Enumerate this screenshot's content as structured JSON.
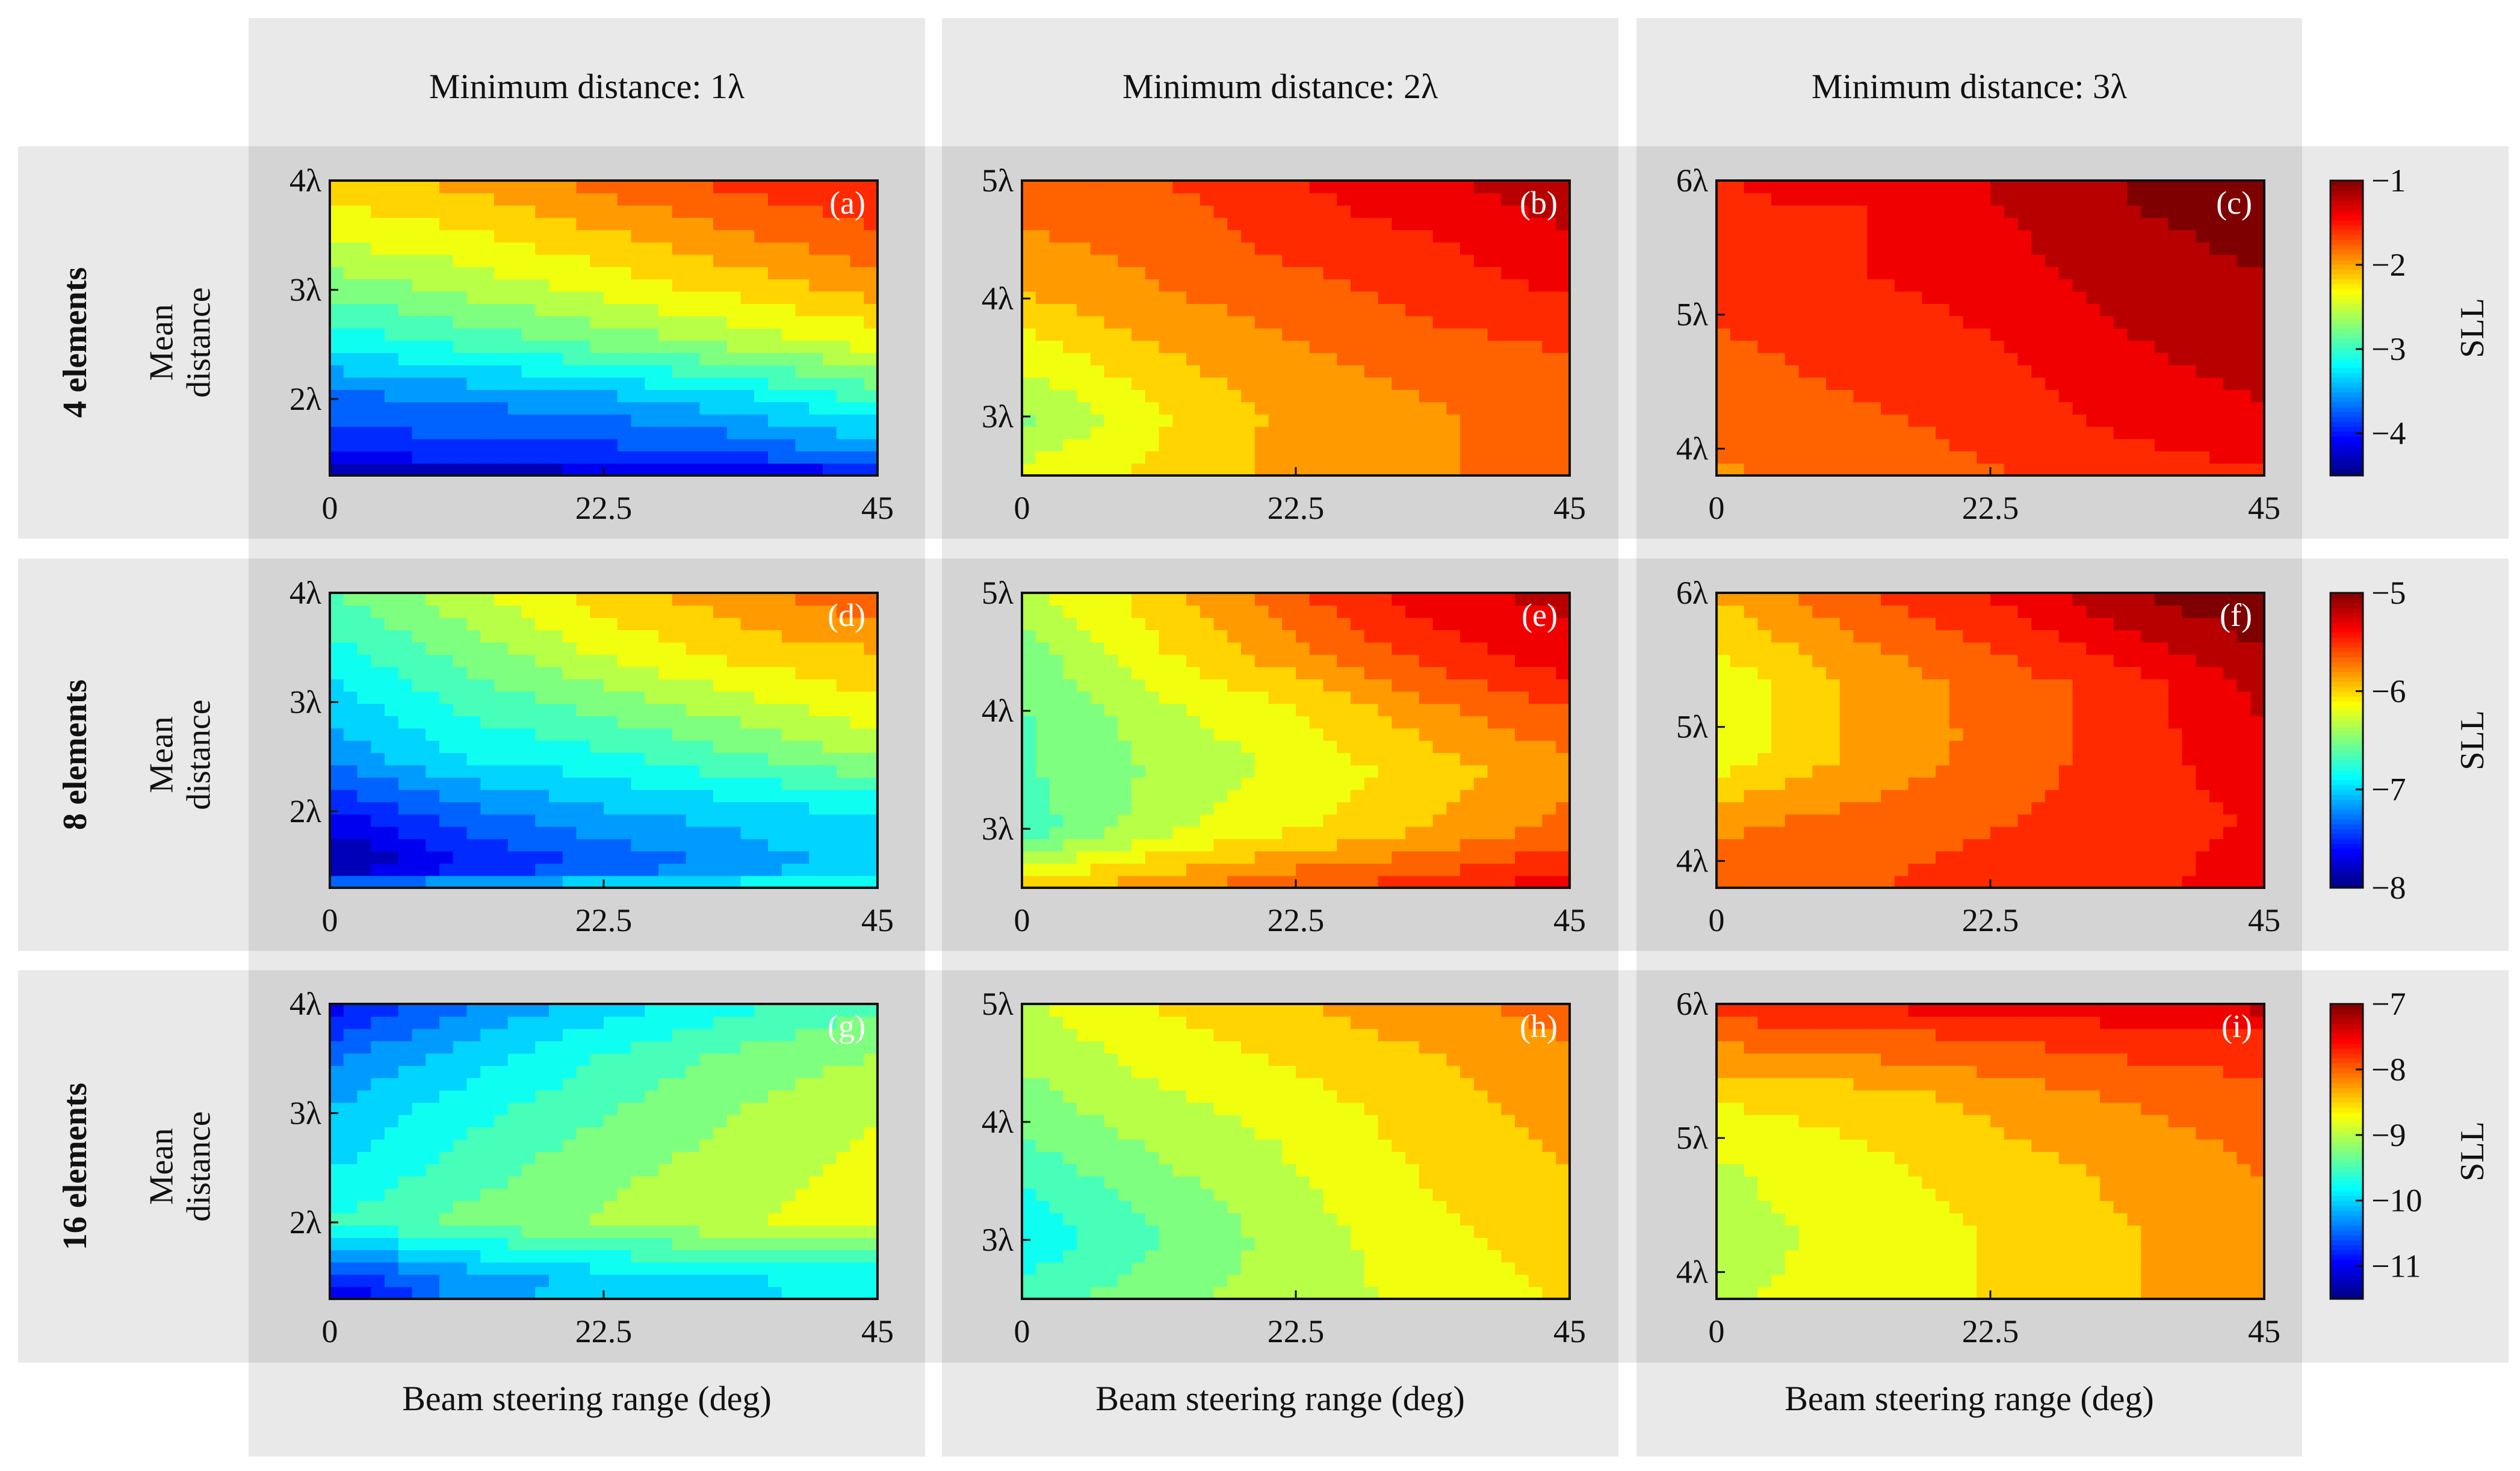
{
  "column_titles": [
    "Minimum distance: 1λ",
    "Minimum distance: 2λ",
    "Minimum distance: 3λ"
  ],
  "row_titles": [
    "4 elements",
    "8 elements",
    "16 elements"
  ],
  "row_ylabel": [
    "Mean",
    "distance"
  ],
  "xlabel": "Beam steering range (deg)",
  "colorbar_label": "SLL",
  "colormap": [
    "#00007f",
    "#0000ff",
    "#007fff",
    "#00ffff",
    "#7fff7f",
    "#ffff00",
    "#ff7f00",
    "#ff0000",
    "#7f0000"
  ],
  "chart_data": [
    {
      "panel": "(a)",
      "type": "heatmap",
      "row": 0,
      "col": 0,
      "x_ticks": [
        "0",
        "22.5",
        "45"
      ],
      "y_ticks": [
        "2λ",
        "3λ",
        "4λ"
      ],
      "xlim": [
        0,
        45
      ],
      "ylim": [
        1.3,
        4
      ],
      "clim": [
        -4.5,
        -1
      ],
      "x": [
        0,
        11.25,
        22.5,
        33.75,
        45
      ],
      "y": [
        1.3,
        1.5,
        2,
        2.5,
        3,
        3.5,
        4
      ],
      "z": [
        [
          -4.5,
          -4.4,
          -4.3,
          -4.2,
          -4.1
        ],
        [
          -4.0,
          -3.9,
          -3.9,
          -3.8,
          -3.6
        ],
        [
          -3.7,
          -3.6,
          -3.5,
          -3.3,
          -3.0
        ],
        [
          -3.2,
          -3.0,
          -2.8,
          -2.6,
          -2.4
        ],
        [
          -2.8,
          -2.6,
          -2.4,
          -2.2,
          -2.0
        ],
        [
          -2.4,
          -2.3,
          -2.1,
          -1.9,
          -1.7
        ],
        [
          -2.2,
          -2.0,
          -1.8,
          -1.6,
          -1.5
        ]
      ]
    },
    {
      "panel": "(b)",
      "type": "heatmap",
      "row": 0,
      "col": 1,
      "x_ticks": [
        "0",
        "22.5",
        "45"
      ],
      "y_ticks": [
        "3λ",
        "4λ",
        "5λ"
      ],
      "xlim": [
        0,
        45
      ],
      "ylim": [
        2.5,
        5
      ],
      "clim": [
        -4.5,
        -1
      ],
      "x": [
        0,
        11.25,
        22.5,
        33.75,
        45
      ],
      "y": [
        2.5,
        3,
        3.5,
        4,
        4.5,
        5
      ],
      "z": [
        [
          -2.4,
          -2.2,
          -2.0,
          -1.9,
          -1.8
        ],
        [
          -2.7,
          -2.3,
          -2.0,
          -1.9,
          -1.8
        ],
        [
          -2.4,
          -2.1,
          -1.9,
          -1.8,
          -1.7
        ],
        [
          -2.1,
          -1.9,
          -1.8,
          -1.6,
          -1.5
        ],
        [
          -1.9,
          -1.8,
          -1.6,
          -1.5,
          -1.3
        ],
        [
          -1.8,
          -1.7,
          -1.5,
          -1.3,
          -1.2
        ]
      ]
    },
    {
      "panel": "(c)",
      "type": "heatmap",
      "row": 0,
      "col": 2,
      "x_ticks": [
        "0",
        "22.5",
        "45"
      ],
      "y_ticks": [
        "4λ",
        "5λ",
        "6λ"
      ],
      "xlim": [
        0,
        45
      ],
      "ylim": [
        3.8,
        6
      ],
      "clim": [
        -4.5,
        -1
      ],
      "x": [
        0,
        11.25,
        22.5,
        33.75,
        45
      ],
      "y": [
        3.8,
        4.3,
        4.8,
        5.3,
        5.8,
        6
      ],
      "z": [
        [
          -1.9,
          -1.8,
          -1.7,
          -1.6,
          -1.5
        ],
        [
          -1.8,
          -1.7,
          -1.6,
          -1.4,
          -1.3
        ],
        [
          -1.7,
          -1.6,
          -1.5,
          -1.3,
          -1.2
        ],
        [
          -1.6,
          -1.5,
          -1.4,
          -1.2,
          -1.1
        ],
        [
          -1.5,
          -1.5,
          -1.3,
          -1.1,
          -1.0
        ],
        [
          -1.5,
          -1.4,
          -1.3,
          -1.1,
          -1.0
        ]
      ]
    },
    {
      "panel": "(d)",
      "type": "heatmap",
      "row": 1,
      "col": 0,
      "x_ticks": [
        "0",
        "22.5",
        "45"
      ],
      "y_ticks": [
        "2λ",
        "3λ",
        "4λ"
      ],
      "xlim": [
        0,
        45
      ],
      "ylim": [
        1.3,
        4
      ],
      "clim": [
        -8,
        -5
      ],
      "x": [
        0,
        11.25,
        22.5,
        33.75,
        45
      ],
      "y": [
        1.3,
        1.5,
        2,
        2.5,
        3,
        3.5,
        4
      ],
      "z": [
        [
          -7.2,
          -7.0,
          -6.9,
          -6.8,
          -6.7
        ],
        [
          -8.0,
          -7.6,
          -7.4,
          -7.2,
          -7.0
        ],
        [
          -7.6,
          -7.3,
          -7.1,
          -7.0,
          -6.9
        ],
        [
          -7.2,
          -6.9,
          -6.8,
          -6.6,
          -6.4
        ],
        [
          -7.0,
          -6.7,
          -6.5,
          -6.3,
          -6.1
        ],
        [
          -6.8,
          -6.5,
          -6.2,
          -6.0,
          -5.9
        ],
        [
          -6.6,
          -6.3,
          -6.0,
          -5.8,
          -5.6
        ]
      ]
    },
    {
      "panel": "(e)",
      "type": "heatmap",
      "row": 1,
      "col": 1,
      "x_ticks": [
        "0",
        "22.5",
        "45"
      ],
      "y_ticks": [
        "3λ",
        "4λ",
        "5λ"
      ],
      "xlim": [
        0,
        45
      ],
      "ylim": [
        2.5,
        5
      ],
      "clim": [
        -8,
        -5
      ],
      "x": [
        0,
        11.25,
        22.5,
        33.75,
        45
      ],
      "y": [
        2.5,
        3,
        3.5,
        4,
        4.5,
        5
      ],
      "z": [
        [
          -6.0,
          -5.8,
          -5.6,
          -5.5,
          -5.3
        ],
        [
          -6.7,
          -6.3,
          -6.1,
          -5.9,
          -5.7
        ],
        [
          -6.6,
          -6.4,
          -6.2,
          -6.0,
          -5.8
        ],
        [
          -6.6,
          -6.3,
          -6.1,
          -5.8,
          -5.6
        ],
        [
          -6.5,
          -6.1,
          -5.8,
          -5.5,
          -5.3
        ],
        [
          -6.3,
          -6.0,
          -5.6,
          -5.3,
          -5.2
        ]
      ]
    },
    {
      "panel": "(f)",
      "type": "heatmap",
      "row": 1,
      "col": 2,
      "x_ticks": [
        "0",
        "22.5",
        "45"
      ],
      "y_ticks": [
        "4λ",
        "5λ",
        "6λ"
      ],
      "xlim": [
        0,
        45
      ],
      "ylim": [
        3.8,
        6
      ],
      "clim": [
        -8,
        -5
      ],
      "x": [
        0,
        11.25,
        22.5,
        33.75,
        45
      ],
      "y": [
        3.8,
        4.3,
        4.8,
        5.3,
        5.8,
        6
      ],
      "z": [
        [
          -5.6,
          -5.6,
          -5.5,
          -5.5,
          -5.3
        ],
        [
          -5.8,
          -5.7,
          -5.6,
          -5.5,
          -5.4
        ],
        [
          -6.2,
          -5.9,
          -5.7,
          -5.5,
          -5.3
        ],
        [
          -6.2,
          -5.9,
          -5.7,
          -5.5,
          -5.2
        ],
        [
          -6.0,
          -5.7,
          -5.5,
          -5.2,
          -5.0
        ],
        [
          -5.9,
          -5.6,
          -5.4,
          -5.1,
          -4.9
        ]
      ]
    },
    {
      "panel": "(g)",
      "type": "heatmap",
      "row": 2,
      "col": 0,
      "x_ticks": [
        "0",
        "22.5",
        "45"
      ],
      "y_ticks": [
        "2λ",
        "3λ",
        "4λ"
      ],
      "xlim": [
        0,
        45
      ],
      "ylim": [
        1.3,
        4
      ],
      "clim": [
        -11.5,
        -7
      ],
      "x": [
        0,
        11.25,
        22.5,
        33.75,
        45
      ],
      "y": [
        1.3,
        1.5,
        2,
        2.5,
        3,
        3.5,
        4
      ],
      "z": [
        [
          -11.3,
          -10.2,
          -10.0,
          -9.9,
          -9.8
        ],
        [
          -10.8,
          -10.3,
          -10.0,
          -9.9,
          -9.8
        ],
        [
          -9.6,
          -9.3,
          -9.1,
          -8.9,
          -8.7
        ],
        [
          -9.9,
          -9.5,
          -9.2,
          -9.0,
          -8.8
        ],
        [
          -10.1,
          -9.7,
          -9.4,
          -9.1,
          -8.9
        ],
        [
          -10.4,
          -10.0,
          -9.6,
          -9.3,
          -9.1
        ],
        [
          -11.0,
          -10.4,
          -10.0,
          -9.7,
          -9.4
        ]
      ]
    },
    {
      "panel": "(h)",
      "type": "heatmap",
      "row": 2,
      "col": 1,
      "x_ticks": [
        "0",
        "22.5",
        "45"
      ],
      "y_ticks": [
        "3λ",
        "4λ",
        "5λ"
      ],
      "xlim": [
        0,
        45
      ],
      "ylim": [
        2.5,
        5
      ],
      "clim": [
        -11.5,
        -7
      ],
      "x": [
        0,
        11.25,
        22.5,
        33.75,
        45
      ],
      "y": [
        2.5,
        3,
        3.5,
        4,
        4.5,
        5
      ],
      "z": [
        [
          -9.5,
          -9.2,
          -9.0,
          -8.8,
          -8.6
        ],
        [
          -9.8,
          -9.4,
          -9.0,
          -8.7,
          -8.5
        ],
        [
          -9.6,
          -9.2,
          -8.9,
          -8.6,
          -8.4
        ],
        [
          -9.3,
          -9.0,
          -8.8,
          -8.5,
          -8.3
        ],
        [
          -9.1,
          -8.8,
          -8.6,
          -8.4,
          -8.2
        ],
        [
          -8.9,
          -8.6,
          -8.4,
          -8.2,
          -8.0
        ]
      ]
    },
    {
      "panel": "(i)",
      "type": "heatmap",
      "row": 2,
      "col": 2,
      "x_ticks": [
        "0",
        "22.5",
        "45"
      ],
      "y_ticks": [
        "4λ",
        "5λ",
        "6λ"
      ],
      "xlim": [
        0,
        45
      ],
      "ylim": [
        3.8,
        6
      ],
      "clim": [
        -11.5,
        -7
      ],
      "x": [
        0,
        11.25,
        22.5,
        33.75,
        45
      ],
      "y": [
        3.8,
        4.3,
        4.8,
        5.3,
        5.8,
        6
      ],
      "z": [
        [
          -8.9,
          -8.8,
          -8.6,
          -8.4,
          -8.2
        ],
        [
          -9.0,
          -8.8,
          -8.6,
          -8.4,
          -8.2
        ],
        [
          -8.9,
          -8.7,
          -8.5,
          -8.3,
          -8.1
        ],
        [
          -8.6,
          -8.5,
          -8.3,
          -8.1,
          -8.0
        ],
        [
          -8.0,
          -7.9,
          -7.8,
          -7.7,
          -7.6
        ],
        [
          -7.7,
          -7.6,
          -7.5,
          -7.4,
          -7.3
        ]
      ]
    }
  ],
  "colorbars": [
    {
      "row": 0,
      "clim": [
        -4.5,
        -1
      ],
      "ticks": [
        "-1",
        "-2",
        "-3",
        "-4"
      ],
      "tick_values": [
        -1,
        -2,
        -3,
        -4
      ]
    },
    {
      "row": 1,
      "clim": [
        -8,
        -5
      ],
      "ticks": [
        "-5",
        "-6",
        "-7",
        "-8"
      ],
      "tick_values": [
        -5,
        -6,
        -7,
        -8
      ]
    },
    {
      "row": 2,
      "clim": [
        -11.5,
        -7
      ],
      "ticks": [
        "-7",
        "-8",
        "-9",
        "-10",
        "-11"
      ],
      "tick_values": [
        -7,
        -8,
        -9,
        -10,
        -11
      ]
    }
  ]
}
